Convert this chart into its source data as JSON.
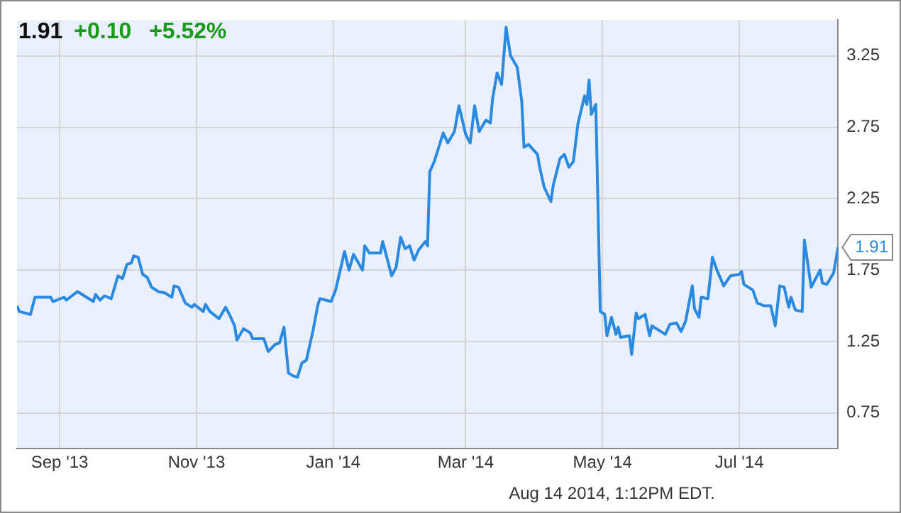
{
  "chart_data": {
    "type": "line",
    "title": "1.91",
    "subtitle": "+0.10 +5.52%",
    "annotations": [
      "Aug 14 2014, 1:12PM EDT."
    ],
    "x": [
      "2013-08-13",
      "2013-08-14",
      "2013-08-19",
      "2013-08-21",
      "2013-08-28",
      "2013-08-29",
      "2013-09-03",
      "2013-09-04",
      "2013-09-09",
      "2013-09-16",
      "2013-09-17",
      "2013-09-19",
      "2013-09-21",
      "2013-09-24",
      "2013-09-27",
      "2013-09-29",
      "2013-10-01",
      "2013-10-03",
      "2013-10-04",
      "2013-10-06",
      "2013-10-08",
      "2013-10-10",
      "2013-10-12",
      "2013-10-15",
      "2013-10-18",
      "2013-10-21",
      "2013-10-22",
      "2013-10-24",
      "2013-10-27",
      "2013-10-30",
      "2013-10-31",
      "2013-11-04",
      "2013-11-05",
      "2013-11-07",
      "2013-11-11",
      "2013-11-14",
      "2013-11-16",
      "2013-11-18",
      "2013-11-19",
      "2013-11-22",
      "2013-11-25",
      "2013-11-26",
      "2013-12-01",
      "2013-12-03",
      "2013-12-06",
      "2013-12-08",
      "2013-12-10",
      "2013-12-12",
      "2013-12-14",
      "2013-12-16",
      "2013-12-18",
      "2013-12-20",
      "2013-12-23",
      "2013-12-25",
      "2013-12-26",
      "2013-12-31",
      "2014-01-02",
      "2014-01-06",
      "2014-01-08",
      "2014-01-10",
      "2014-01-14",
      "2014-01-15",
      "2014-01-17",
      "2014-01-22",
      "2014-01-23",
      "2014-01-27",
      "2014-01-29",
      "2014-01-31",
      "2014-02-02",
      "2014-02-04",
      "2014-02-06",
      "2014-02-08",
      "2014-02-11",
      "2014-02-12",
      "2014-02-13",
      "2014-02-15",
      "2014-02-19",
      "2014-02-21",
      "2014-02-24",
      "2014-02-26",
      "2014-03-01",
      "2014-03-03",
      "2014-03-05",
      "2014-03-07",
      "2014-03-10",
      "2014-03-12",
      "2014-03-13",
      "2014-03-15",
      "2014-03-17",
      "2014-03-19",
      "2014-03-21",
      "2014-03-24",
      "2014-03-26",
      "2014-03-27",
      "2014-03-29",
      "2014-04-02",
      "2014-04-03",
      "2014-04-05",
      "2014-04-08",
      "2014-04-09",
      "2014-04-12",
      "2014-04-14",
      "2014-04-16",
      "2014-04-18",
      "2014-04-20",
      "2014-04-23",
      "2014-04-24",
      "2014-04-25",
      "2014-04-26",
      "2014-04-28",
      "2014-04-30",
      "2014-05-02",
      "2014-05-03",
      "2014-05-05",
      "2014-05-07",
      "2014-05-08",
      "2014-05-09",
      "2014-05-13",
      "2014-05-14",
      "2014-05-16",
      "2014-05-17",
      "2014-05-20",
      "2014-05-22",
      "2014-05-23",
      "2014-05-27",
      "2014-05-29",
      "2014-05-31",
      "2014-06-03",
      "2014-06-05",
      "2014-06-07",
      "2014-06-10",
      "2014-06-11",
      "2014-06-13",
      "2014-06-14",
      "2014-06-17",
      "2014-06-19",
      "2014-06-21",
      "2014-06-24",
      "2014-06-27",
      "2014-07-01",
      "2014-07-02",
      "2014-07-03",
      "2014-07-07",
      "2014-07-09",
      "2014-07-12",
      "2014-07-15",
      "2014-07-17",
      "2014-07-19",
      "2014-07-21",
      "2014-07-23",
      "2014-07-24",
      "2014-07-26",
      "2014-07-29",
      "2014-07-30",
      "2014-08-02",
      "2014-08-06",
      "2014-08-07",
      "2014-08-09",
      "2014-08-12",
      "2014-08-14"
    ],
    "series": [
      {
        "color": "#2a8ae2",
        "values": [
          1.5,
          1.46,
          1.44,
          1.56,
          1.56,
          1.53,
          1.56,
          1.54,
          1.6,
          1.53,
          1.58,
          1.54,
          1.57,
          1.55,
          1.71,
          1.69,
          1.79,
          1.8,
          1.85,
          1.84,
          1.72,
          1.7,
          1.63,
          1.6,
          1.59,
          1.56,
          1.64,
          1.63,
          1.52,
          1.49,
          1.51,
          1.46,
          1.51,
          1.46,
          1.41,
          1.49,
          1.43,
          1.36,
          1.26,
          1.34,
          1.31,
          1.27,
          1.27,
          1.18,
          1.23,
          1.24,
          1.35,
          1.03,
          1.01,
          1.0,
          1.1,
          1.12,
          1.33,
          1.5,
          1.55,
          1.53,
          1.61,
          1.88,
          1.75,
          1.86,
          1.75,
          1.92,
          1.87,
          1.87,
          1.95,
          1.71,
          1.77,
          1.98,
          1.9,
          1.92,
          1.82,
          1.89,
          1.95,
          1.92,
          2.44,
          2.51,
          2.71,
          2.64,
          2.72,
          2.9,
          2.7,
          2.64,
          2.9,
          2.72,
          2.8,
          2.78,
          2.95,
          3.13,
          3.05,
          3.45,
          3.25,
          3.17,
          2.93,
          2.61,
          2.63,
          2.56,
          2.47,
          2.33,
          2.23,
          2.34,
          2.53,
          2.56,
          2.47,
          2.51,
          2.77,
          2.97,
          2.91,
          3.08,
          2.84,
          2.91,
          1.46,
          1.44,
          1.29,
          1.42,
          1.3,
          1.35,
          1.28,
          1.29,
          1.16,
          1.45,
          1.41,
          1.44,
          1.29,
          1.36,
          1.32,
          1.3,
          1.37,
          1.38,
          1.32,
          1.39,
          1.64,
          1.48,
          1.42,
          1.56,
          1.55,
          1.84,
          1.75,
          1.64,
          1.71,
          1.72,
          1.74,
          1.65,
          1.61,
          1.52,
          1.5,
          1.5,
          1.36,
          1.64,
          1.63,
          1.49,
          1.56,
          1.47,
          1.46,
          1.96,
          1.63,
          1.75,
          1.66,
          1.65,
          1.73,
          1.91
        ],
        "value_labels": [
          null,
          null,
          null,
          null,
          null,
          null,
          null,
          null,
          null,
          null,
          null,
          null,
          null,
          null,
          null,
          null,
          null,
          null,
          null,
          null,
          null,
          null,
          null,
          null,
          null,
          null,
          null,
          null,
          null,
          null,
          null,
          null,
          null,
          null,
          null,
          null,
          null,
          null,
          null,
          null,
          null,
          null,
          null,
          null,
          null,
          null,
          null,
          null,
          null,
          null,
          null,
          null,
          null,
          null,
          null,
          null,
          null,
          null,
          null,
          null,
          null,
          null,
          null,
          null,
          null,
          null,
          null,
          null,
          null,
          null,
          null,
          null,
          null,
          null,
          null,
          null,
          null,
          null,
          null,
          null,
          null,
          null,
          null,
          null,
          null,
          null,
          null,
          null,
          null,
          null,
          null,
          null,
          null,
          null,
          null,
          null,
          null,
          null,
          null,
          null,
          null,
          null,
          null,
          null,
          null,
          null,
          null,
          null,
          null,
          null,
          null,
          null,
          null,
          null,
          null,
          null,
          null,
          null,
          null,
          null,
          null,
          null,
          null,
          null,
          null,
          null,
          null,
          null,
          null,
          null,
          null,
          null,
          null,
          null,
          null,
          null,
          null,
          null,
          null,
          null,
          null,
          null,
          null,
          null,
          null,
          null,
          null,
          null,
          null,
          null,
          null,
          null,
          null,
          null,
          null,
          null,
          null,
          null,
          null,
          "1.91"
        ]
      }
    ],
    "xlim": [
      "2013-08-13",
      "2014-08-14"
    ],
    "xticks": [
      {
        "value": "2013-09-01",
        "label": "Sep '13"
      },
      {
        "value": "2013-11-01",
        "label": "Nov '13"
      },
      {
        "value": "2014-01-01",
        "label": "Jan '14"
      },
      {
        "value": "2014-03-01",
        "label": "Mar '14"
      },
      {
        "value": "2014-05-01",
        "label": "May '14"
      },
      {
        "value": "2014-07-01",
        "label": "Jul '14"
      }
    ],
    "ylim": [
      0.5,
      3.5
    ],
    "yticks": [
      0.75,
      1.25,
      1.75,
      2.25,
      2.75,
      3.25
    ],
    "grid": true,
    "legend": false,
    "marker": "none",
    "line_style": "solid"
  }
}
